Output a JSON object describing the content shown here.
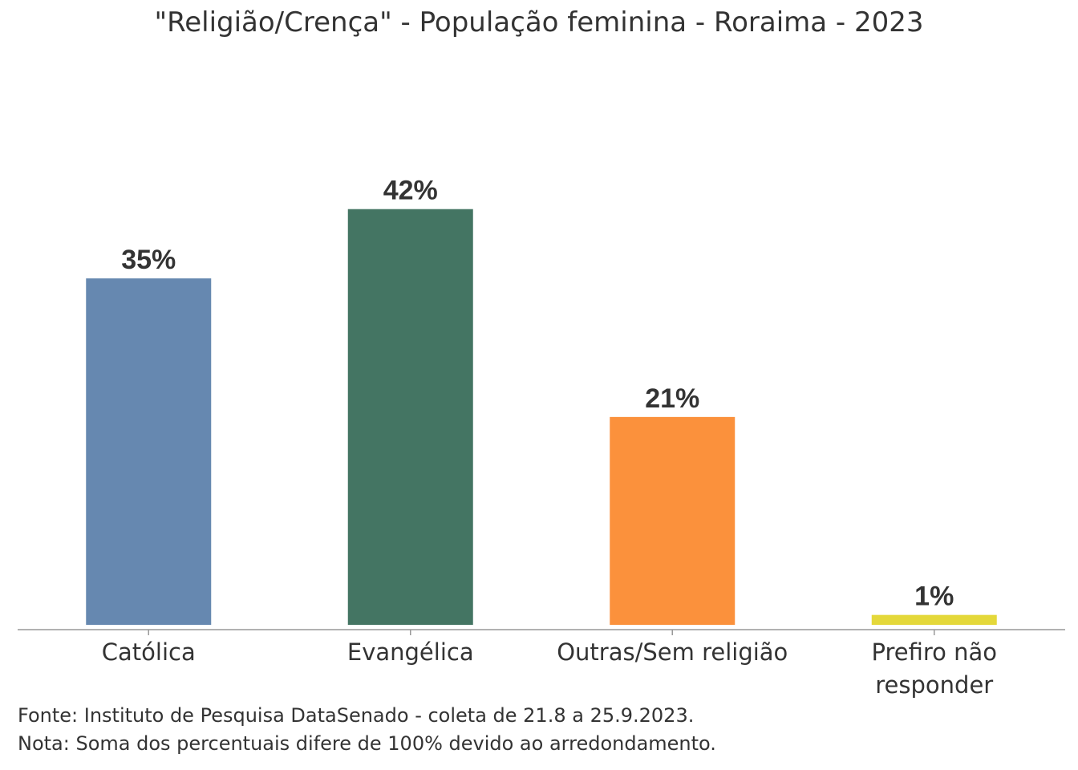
{
  "chart_data": {
    "type": "bar",
    "title": "\"Religião/Crença\" - População feminina - Roraima - 2023",
    "categories": [
      "Católica",
      "Evangélica",
      "Outras/Sem religião",
      "Prefiro não responder"
    ],
    "category_lines": [
      [
        "Católica"
      ],
      [
        "Evangélica"
      ],
      [
        "Outras/Sem religião"
      ],
      [
        "Prefiro não",
        "responder"
      ]
    ],
    "values": [
      35,
      42,
      21,
      1
    ],
    "data_labels": [
      "35%",
      "42%",
      "21%",
      "1%"
    ],
    "colors": [
      "#6688b0",
      "#447563",
      "#fb913c",
      "#e4d83a"
    ],
    "xlabel": "",
    "ylabel": "",
    "ylim": [
      0,
      50
    ],
    "grid": false,
    "legend": "none"
  },
  "footer": {
    "source": "Fonte: Instituto de Pesquisa DataSenado - coleta de 21.8 a 25.9.2023.",
    "note": "Nota: Soma dos percentuais difere de 100% devido ao arredondamento."
  }
}
